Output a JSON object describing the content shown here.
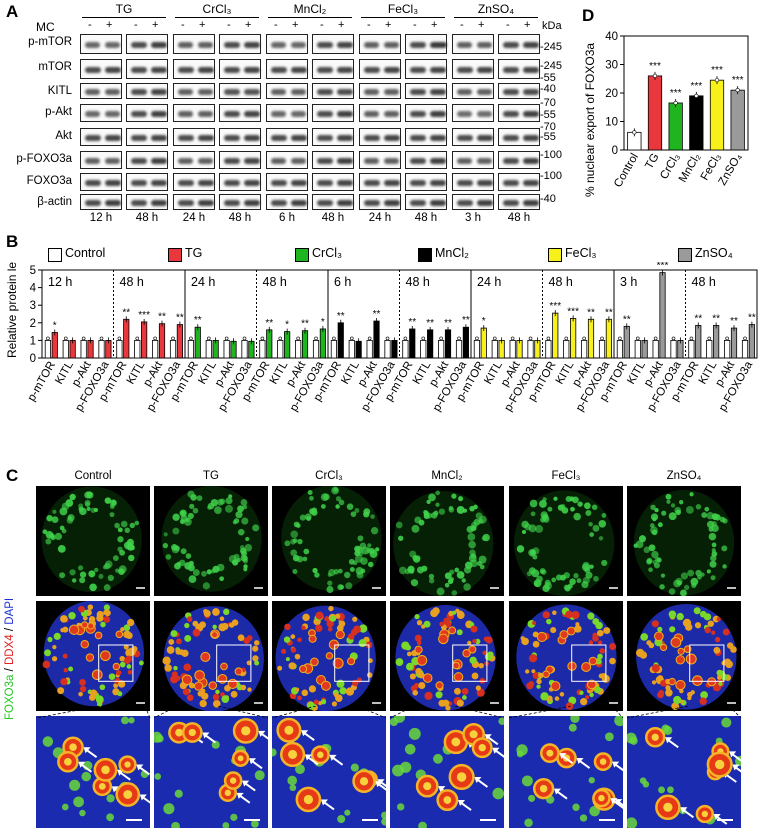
{
  "panelA": {
    "label": "A",
    "mc_label": "MC",
    "kda_label": "kDa",
    "signs": [
      "-",
      "+"
    ],
    "conditions": [
      "TG",
      "CrCl₃",
      "MnCl₂",
      "FeCl₃",
      "ZnSO₄"
    ],
    "proteins": [
      "p-mTOR",
      "mTOR",
      "KITL",
      "p-Akt",
      "Akt",
      "p-FOXO3a",
      "FOXO3a",
      "β-actin"
    ],
    "kda_markers": [
      "-245",
      "-245",
      "-55",
      "-40",
      "-70",
      "-55",
      "-70",
      "-55",
      "-100",
      "-100",
      "-40"
    ],
    "times": [
      "12 h",
      "48 h",
      "24 h",
      "48 h",
      "6 h",
      "48 h",
      "24 h",
      "48 h",
      "3 h",
      "48 h"
    ]
  },
  "panelB": {
    "label": "B",
    "legend": [
      "Control",
      "TG",
      "CrCl₃",
      "MnCl₂",
      "FeCl₃",
      "ZnSO₄"
    ]
  },
  "panelC": {
    "label": "C",
    "headers": [
      "Control",
      "TG",
      "CrCl₃",
      "MnCl₂",
      "FeCl₃",
      "ZnSO₄"
    ],
    "stain_foxo": "FOXO3a",
    "stain_sep1": " / ",
    "stain_ddx4": "DDX4",
    "stain_sep2": " / ",
    "stain_dapi": "DAPI"
  },
  "panelD": {
    "label": "D"
  },
  "colors": {
    "Control": "#ffffff",
    "TG": "#e8383d",
    "CrCl3": "#1fb51f",
    "MnCl2": "#000000",
    "FeCl3": "#f7f01a",
    "ZnSO4": "#9a9a9a"
  },
  "chart_data": [
    {
      "type": "bar",
      "title": "",
      "ylabel": "Relative protein levels",
      "ylim": [
        0,
        5
      ],
      "yticks": [
        0,
        1,
        2,
        3,
        4,
        5
      ],
      "categories": [
        "p-mTOR",
        "KITL",
        "p-Akt",
        "p-FOXO3a"
      ],
      "groups": [
        {
          "time": "12 h",
          "treatment": "TG",
          "control": [
            1,
            1,
            1,
            1
          ],
          "values": [
            1.45,
            1.0,
            1.0,
            1.0
          ],
          "stars": [
            "*",
            "",
            "",
            ""
          ]
        },
        {
          "time": "48 h",
          "treatment": "TG",
          "control": [
            1,
            1,
            1,
            1
          ],
          "values": [
            2.2,
            2.05,
            1.95,
            1.9
          ],
          "stars": [
            "**",
            "***",
            "**",
            "**"
          ]
        },
        {
          "time": "24 h",
          "treatment": "CrCl₃",
          "control": [
            1,
            1,
            1,
            1
          ],
          "values": [
            1.75,
            1.0,
            0.95,
            0.95
          ],
          "stars": [
            "**",
            "",
            "",
            ""
          ]
        },
        {
          "time": "48 h",
          "treatment": "CrCl₃",
          "control": [
            1,
            1,
            1,
            1
          ],
          "values": [
            1.6,
            1.5,
            1.55,
            1.65
          ],
          "stars": [
            "**",
            "*",
            "**",
            "*"
          ]
        },
        {
          "time": "6 h",
          "treatment": "MnCl₂",
          "control": [
            1,
            1,
            1,
            1
          ],
          "values": [
            2.0,
            0.95,
            2.1,
            1.0
          ],
          "stars": [
            "**",
            "",
            "**",
            ""
          ]
        },
        {
          "time": "48 h",
          "treatment": "MnCl₂",
          "control": [
            1,
            1,
            1,
            1
          ],
          "values": [
            1.65,
            1.6,
            1.6,
            1.75
          ],
          "stars": [
            "**",
            "**",
            "**",
            "**"
          ]
        },
        {
          "time": "24 h",
          "treatment": "FeCl₃",
          "control": [
            1,
            1,
            1,
            1
          ],
          "values": [
            1.7,
            1.0,
            1.0,
            1.0
          ],
          "stars": [
            "*",
            "",
            "",
            ""
          ]
        },
        {
          "time": "48 h",
          "treatment": "FeCl₃",
          "control": [
            1,
            1,
            1,
            1
          ],
          "values": [
            2.55,
            2.25,
            2.2,
            2.2
          ],
          "stars": [
            "***",
            "***",
            "**",
            "**"
          ]
        },
        {
          "time": "3 h",
          "treatment": "ZnSO₄",
          "control": [
            1,
            1,
            1,
            1
          ],
          "values": [
            1.8,
            1.0,
            4.85,
            1.0
          ],
          "stars": [
            "**",
            "",
            "***",
            ""
          ]
        },
        {
          "time": "48 h",
          "treatment": "ZnSO₄",
          "control": [
            1,
            1,
            1,
            1
          ],
          "values": [
            1.85,
            1.85,
            1.7,
            1.9
          ],
          "stars": [
            "**",
            "**",
            "**",
            "**"
          ]
        }
      ]
    },
    {
      "type": "bar",
      "title": "",
      "ylabel": "% nuclear export of FOXO3a",
      "ylim": [
        0,
        40
      ],
      "yticks": [
        0,
        10,
        20,
        30,
        40
      ],
      "categories": [
        "Control",
        "TG",
        "CrCl₃",
        "MnCl₂",
        "FeCl₃",
        "ZnSO₄"
      ],
      "values": [
        6.2,
        26.0,
        16.5,
        19.0,
        24.5,
        21.0
      ],
      "stars": [
        "",
        "***",
        "***",
        "***",
        "***",
        "***"
      ]
    }
  ]
}
